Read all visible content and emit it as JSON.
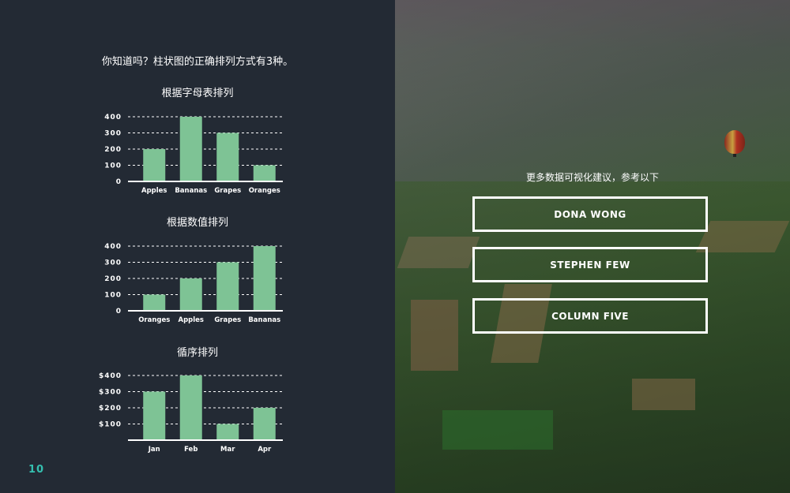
{
  "intro_text": "你知道吗？柱状图的正确排列方式有3种。",
  "page_number": "10",
  "right_panel": {
    "title": "更多数据可视化建议，参考以下",
    "references": [
      "DONA WONG",
      "STEPHEN FEW",
      "COLUMN FIVE"
    ]
  },
  "colors": {
    "bar": "#7ec395",
    "background": "#232a34",
    "accent": "#35c0b0"
  },
  "chart_data": [
    {
      "type": "bar",
      "title": "根据字母表排列",
      "categories": [
        "Apples",
        "Bananas",
        "Grapes",
        "Oranges"
      ],
      "values": [
        200,
        400,
        300,
        100
      ],
      "ylim": [
        0,
        400
      ],
      "yticks": [
        "0",
        "100",
        "200",
        "300",
        "400"
      ],
      "grid": true
    },
    {
      "type": "bar",
      "title": "根据数值排列",
      "categories": [
        "Oranges",
        "Apples",
        "Grapes",
        "Bananas"
      ],
      "values": [
        100,
        200,
        300,
        400
      ],
      "ylim": [
        0,
        400
      ],
      "yticks": [
        "0",
        "100",
        "200",
        "300",
        "400"
      ],
      "grid": true
    },
    {
      "type": "bar",
      "title": "循序排列",
      "categories": [
        "Jan",
        "Feb",
        "Mar",
        "Apr"
      ],
      "values": [
        300,
        400,
        100,
        200
      ],
      "ylim": [
        0,
        400
      ],
      "yticks": [
        "$100",
        "$200",
        "$300",
        "$400"
      ],
      "grid": true
    }
  ]
}
